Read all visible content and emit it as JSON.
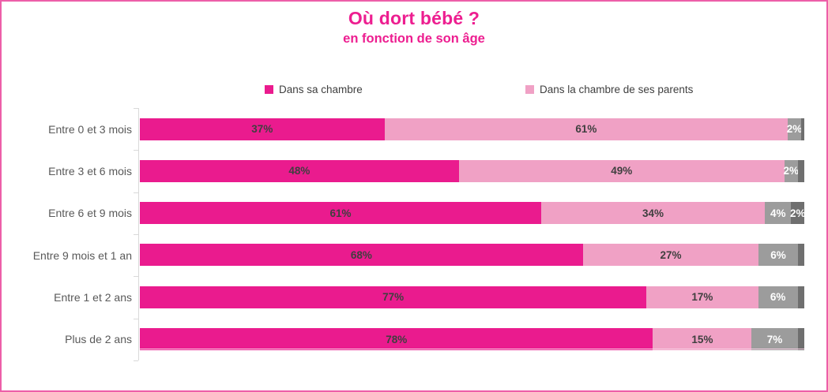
{
  "title": "Où dort bébé ?",
  "subtitle": "en fonction de son âge",
  "colors": {
    "accent_pink": "#ed1e90",
    "frame_border": "#ed5fa9",
    "axis": "#d9d9d9",
    "category_text": "#595959",
    "plot_bottom_line": "#fad2e6"
  },
  "legend": [
    {
      "label": "Dans sa chambre",
      "color": "#ea1b8e"
    },
    {
      "label": "Dans la chambre de ses parents",
      "color": "#f0a1c5"
    }
  ],
  "chart_data": {
    "type": "bar",
    "orientation": "horizontal",
    "stacked": true,
    "grid": false,
    "legend_position": "top",
    "xlim": [
      0,
      100
    ],
    "title": "Où dort bébé ?",
    "subtitle": "en fonction de son âge",
    "categories": [
      "Entre 0 et 3 mois",
      "Entre 3 et 6 mois",
      "Entre 6 et 9 mois",
      "Entre 9 mois et 1 an",
      "Entre 1 et 2 ans",
      "Plus de 2 ans"
    ],
    "series": [
      {
        "name": "Dans sa chambre",
        "color": "#ea1b8e",
        "label_color": "#3f3f3f",
        "values": [
          37,
          48,
          61,
          68,
          77,
          78
        ],
        "labels": [
          "37%",
          "48%",
          "61%",
          "68%",
          "77%",
          "78%"
        ]
      },
      {
        "name": "Dans la chambre de ses parents",
        "color": "#f0a1c5",
        "label_color": "#3f3f3f",
        "values": [
          61,
          49,
          34,
          27,
          17,
          15
        ],
        "labels": [
          "61%",
          "49%",
          "34%",
          "27%",
          "17%",
          "15%"
        ]
      },
      {
        "name": "gray-segment-unlegended",
        "color": "#9c9c9c",
        "label_color": "#ffffff",
        "values": [
          2,
          2,
          4,
          6,
          6,
          7
        ],
        "labels": [
          "2%",
          "2%",
          "4%",
          "6%",
          "6%",
          "7%"
        ]
      },
      {
        "name": "dark-gray-segment-unlegended",
        "color": "#6f6f6f",
        "label_color": "#ffffff",
        "values": [
          0.5,
          1,
          2,
          1,
          1,
          1
        ],
        "labels": [
          "",
          "",
          "2%",
          "",
          "",
          ""
        ]
      }
    ]
  }
}
